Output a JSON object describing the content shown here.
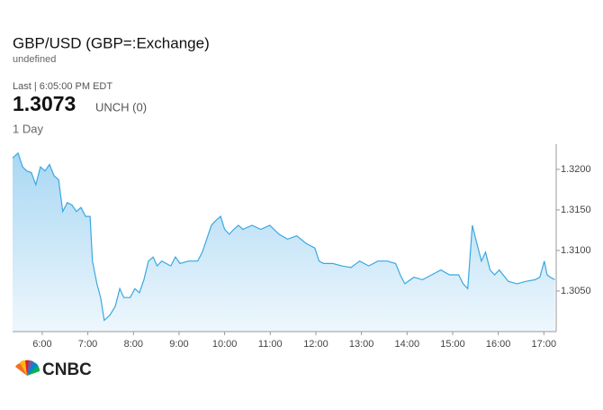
{
  "chart_data": {
    "type": "area",
    "title": "GBP/USD (GBP=:Exchange)",
    "subtitle": "undefined",
    "last_label": "Last | 6:05:00 PM EDT",
    "last_price": "1.3073",
    "change": "UNCH (0)",
    "period": "1 Day",
    "brand": "CNBC",
    "color": "#3aa8e0",
    "grid": false,
    "xlim": [
      5.35,
      17.27
    ],
    "xticks": [
      {
        "value": 6,
        "label": "6:00"
      },
      {
        "value": 7,
        "label": "7:00"
      },
      {
        "value": 8,
        "label": "8:00"
      },
      {
        "value": 9,
        "label": "9:00"
      },
      {
        "value": 10,
        "label": "10:00"
      },
      {
        "value": 11,
        "label": "11:00"
      },
      {
        "value": 12,
        "label": "12:00"
      },
      {
        "value": 13,
        "label": "13:00"
      },
      {
        "value": 14,
        "label": "14:00"
      },
      {
        "value": 15,
        "label": "15:00"
      },
      {
        "value": 16,
        "label": "16:00"
      },
      {
        "value": 17,
        "label": "17:00"
      }
    ],
    "ylim": [
      1.3,
      1.3231
    ],
    "yticks": [
      {
        "value": 1.305,
        "label": "1.3050"
      },
      {
        "value": 1.31,
        "label": "1.3100"
      },
      {
        "value": 1.315,
        "label": "1.3150"
      },
      {
        "value": 1.32,
        "label": "1.3200"
      }
    ],
    "x": [
      5.35,
      5.47,
      5.57,
      5.66,
      5.76,
      5.86,
      5.96,
      6.06,
      6.16,
      6.26,
      6.36,
      6.45,
      6.55,
      6.65,
      6.75,
      6.85,
      6.95,
      7.05,
      7.1,
      7.2,
      7.28,
      7.36,
      7.48,
      7.6,
      7.7,
      7.79,
      7.93,
      8.03,
      8.13,
      8.23,
      8.33,
      8.43,
      8.52,
      8.62,
      8.82,
      8.92,
      9.02,
      9.21,
      9.41,
      9.51,
      9.71,
      9.81,
      9.91,
      10.0,
      10.1,
      10.2,
      10.3,
      10.4,
      10.6,
      10.79,
      10.99,
      11.19,
      11.38,
      11.58,
      11.78,
      11.98,
      12.07,
      12.17,
      12.37,
      12.57,
      12.77,
      12.96,
      13.16,
      13.36,
      13.56,
      13.75,
      13.85,
      13.95,
      14.15,
      14.34,
      14.54,
      14.74,
      14.93,
      15.13,
      15.23,
      15.33,
      15.43,
      15.53,
      15.63,
      15.72,
      15.82,
      15.92,
      16.02,
      16.22,
      16.41,
      16.61,
      16.81,
      16.91,
      17.01,
      17.07,
      17.14,
      17.24
    ],
    "values": [
      1.3214,
      1.322,
      1.3203,
      1.3198,
      1.3196,
      1.3181,
      1.3203,
      1.3198,
      1.3206,
      1.3192,
      1.3187,
      1.3148,
      1.3159,
      1.3156,
      1.3148,
      1.3153,
      1.3142,
      1.3142,
      1.3087,
      1.3059,
      1.3042,
      1.3014,
      1.302,
      1.3031,
      1.3053,
      1.3042,
      1.3042,
      1.3053,
      1.3048,
      1.3064,
      1.3087,
      1.3092,
      1.3081,
      1.3087,
      1.3081,
      1.3092,
      1.3084,
      1.3087,
      1.3087,
      1.3098,
      1.3131,
      1.3137,
      1.3142,
      1.3126,
      1.312,
      1.3126,
      1.3131,
      1.3126,
      1.3131,
      1.3126,
      1.3131,
      1.312,
      1.3114,
      1.3118,
      1.3109,
      1.3103,
      1.3087,
      1.3084,
      1.3084,
      1.3081,
      1.3079,
      1.3087,
      1.3081,
      1.3087,
      1.3087,
      1.3084,
      1.307,
      1.3059,
      1.3067,
      1.3064,
      1.307,
      1.3076,
      1.307,
      1.307,
      1.3059,
      1.3053,
      1.3131,
      1.3109,
      1.3087,
      1.3098,
      1.3076,
      1.307,
      1.3076,
      1.3062,
      1.3059,
      1.3062,
      1.3064,
      1.3067,
      1.3087,
      1.307,
      1.3067,
      1.3064
    ]
  }
}
